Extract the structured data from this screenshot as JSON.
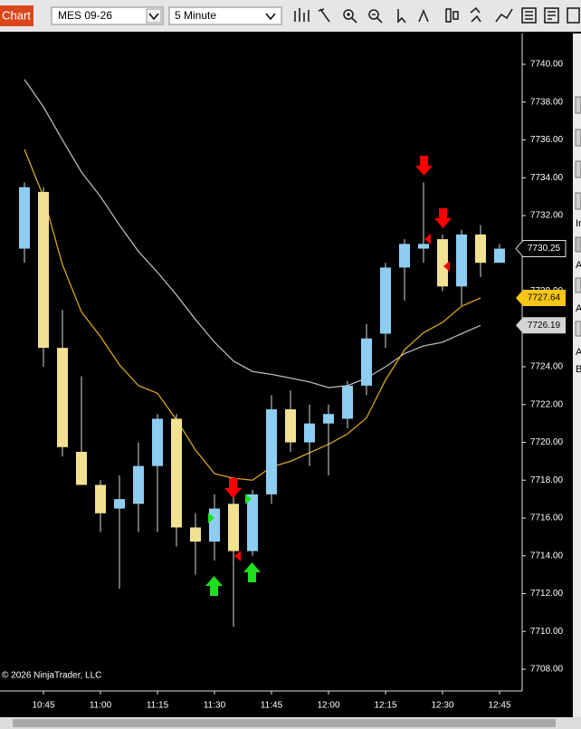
{
  "toolbar": {
    "tab": "Chart",
    "instrument": "MES 09-26",
    "interval": "5 Minute"
  },
  "copyright": "© 2026 NinjaTrader, LLC",
  "side_panel": [
    "In",
    "A",
    "A",
    "A",
    "B"
  ],
  "chart_data": {
    "type": "candlestick",
    "categories": [
      null,
      "10:45",
      null,
      null,
      "11:00",
      null,
      null,
      "11:15",
      null,
      null,
      "11:30",
      null,
      null,
      "11:45",
      null,
      null,
      "12:00",
      null,
      null,
      "12:15",
      null,
      null,
      "12:30",
      null,
      null,
      "12:45"
    ],
    "open": [
      7730.25,
      7733.25,
      7725.0,
      7719.5,
      7717.75,
      7716.5,
      7716.75,
      7718.75,
      7721.25,
      7715.5,
      7714.75,
      7716.75,
      7714.25,
      7717.25,
      7721.75,
      7720.0,
      7721.0,
      7721.25,
      7723.0,
      7725.75,
      7729.25,
      7730.25,
      7730.75,
      7728.25,
      7731.0,
      7729.5
    ],
    "high": [
      7733.75,
      7733.5,
      7727.0,
      7723.5,
      7718.0,
      7718.25,
      7720.0,
      7721.5,
      7721.5,
      7716.25,
      7717.25,
      7717.25,
      7717.5,
      7722.5,
      7722.75,
      7722.0,
      7722.0,
      7723.25,
      7726.25,
      7729.5,
      7730.75,
      7733.75,
      7731.0,
      7731.25,
      7731.5,
      7730.5
    ],
    "low": [
      7729.5,
      7724.0,
      7719.25,
      7717.75,
      7715.25,
      7712.25,
      7715.25,
      7715.25,
      7714.5,
      7713.0,
      7713.75,
      7710.25,
      7714.0,
      7716.75,
      7719.5,
      7718.75,
      7718.25,
      7720.75,
      7722.5,
      7725.0,
      7727.5,
      7729.5,
      7728.0,
      7727.25,
      7728.75,
      7729.5
    ],
    "close": [
      7733.5,
      7725.0,
      7719.75,
      7717.75,
      7716.25,
      7717.0,
      7718.75,
      7721.25,
      7715.5,
      7714.75,
      7716.5,
      7714.25,
      7717.25,
      7721.75,
      7720.0,
      7721.0,
      7721.5,
      7723.0,
      7725.5,
      7729.25,
      7730.5,
      7730.5,
      7728.25,
      7731.0,
      7729.5,
      7730.25
    ],
    "up_color": "#8ecdf2",
    "down_color": "#f2e190",
    "wick_color": "#d8d8d8",
    "series": [
      {
        "color": "#b8b8b8",
        "values": [
          7739.2,
          7737.75,
          7736.0,
          7734.3,
          7733.0,
          7731.5,
          7730.1,
          7729.0,
          7727.8,
          7726.5,
          7725.3,
          7724.3,
          7723.75,
          7723.6,
          7723.4,
          7723.2,
          7722.9,
          7723.0,
          7723.4,
          7724.0,
          7724.7,
          7725.1,
          7725.3,
          7725.75,
          7726.19,
          null
        ]
      },
      {
        "color": "#d9a521",
        "values": [
          7735.5,
          7733.0,
          7729.4,
          7726.9,
          7725.6,
          7724.1,
          7723.0,
          7722.6,
          7721.2,
          7719.6,
          7718.35,
          7718.1,
          7718.0,
          7718.7,
          7719.0,
          7719.45,
          7719.9,
          7720.45,
          7721.3,
          7723.3,
          7724.9,
          7725.8,
          7726.35,
          7727.2,
          7727.64,
          null
        ]
      }
    ],
    "ylim": [
      7706.85,
      7741.63
    ],
    "yticks": [
      {
        "value": 7708,
        "label": "7708.00"
      },
      {
        "value": 7710,
        "label": "7710.00"
      },
      {
        "value": 7712,
        "label": "7712.00"
      },
      {
        "value": 7714,
        "label": "7714.00"
      },
      {
        "value": 7716,
        "label": "7716.00"
      },
      {
        "value": 7718,
        "label": "7718.00"
      },
      {
        "value": 7720,
        "label": "7720.00"
      },
      {
        "value": 7722,
        "label": "7722.00"
      },
      {
        "value": 7724,
        "label": "7724.00"
      },
      {
        "value": 7726,
        "label": "7726.00"
      },
      {
        "value": 7728,
        "label": "7728.00"
      },
      {
        "value": 7730,
        "label": "7730.00"
      },
      {
        "value": 7732,
        "label": "7732.00"
      },
      {
        "value": 7734,
        "label": "7734.00"
      },
      {
        "value": 7736,
        "label": "7736.00"
      },
      {
        "value": 7738,
        "label": "7738.00"
      },
      {
        "value": 7740,
        "label": "7740.00"
      }
    ],
    "grid": false
  }
}
